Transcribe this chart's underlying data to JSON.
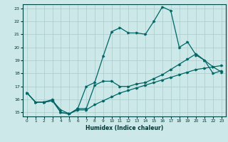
{
  "xlabel": "Humidex (Indice chaleur)",
  "bg_color": "#cce8e8",
  "grid_color": "#aacccc",
  "line_color": "#006666",
  "xlim": [
    -0.5,
    23.5
  ],
  "ylim": [
    14.7,
    23.3
  ],
  "xticks": [
    0,
    1,
    2,
    3,
    4,
    5,
    6,
    7,
    8,
    9,
    10,
    11,
    12,
    13,
    14,
    15,
    16,
    17,
    18,
    19,
    20,
    21,
    22,
    23
  ],
  "yticks": [
    15,
    16,
    17,
    18,
    19,
    20,
    21,
    22,
    23
  ],
  "line1_x": [
    0,
    1,
    2,
    3,
    4,
    5,
    6,
    7,
    8,
    9,
    10,
    11,
    12,
    13,
    14,
    15,
    16,
    17,
    18,
    19,
    20,
    21,
    22,
    23
  ],
  "line1_y": [
    16.5,
    15.8,
    15.8,
    15.9,
    15.0,
    14.9,
    15.3,
    17.0,
    17.3,
    19.3,
    21.2,
    21.5,
    21.1,
    21.1,
    21.0,
    22.0,
    23.1,
    22.8,
    20.0,
    20.4,
    19.4,
    19.0,
    18.5,
    18.1
  ],
  "line2_x": [
    0,
    1,
    2,
    3,
    4,
    5,
    6,
    7,
    8,
    9,
    10,
    11,
    12,
    13,
    14,
    15,
    16,
    17,
    18,
    19,
    20,
    21,
    22,
    23
  ],
  "line2_y": [
    16.5,
    15.8,
    15.8,
    16.0,
    15.0,
    14.9,
    15.3,
    15.3,
    17.1,
    17.4,
    17.4,
    17.0,
    17.0,
    17.2,
    17.3,
    17.6,
    17.9,
    18.3,
    18.7,
    19.1,
    19.5,
    19.0,
    18.0,
    18.2
  ],
  "line3_x": [
    0,
    1,
    2,
    3,
    4,
    5,
    6,
    7,
    8,
    9,
    10,
    11,
    12,
    13,
    14,
    15,
    16,
    17,
    18,
    19,
    20,
    21,
    22,
    23
  ],
  "line3_y": [
    16.5,
    15.8,
    15.8,
    15.9,
    15.2,
    14.9,
    15.2,
    15.2,
    15.6,
    15.9,
    16.2,
    16.5,
    16.7,
    16.9,
    17.1,
    17.3,
    17.5,
    17.7,
    17.9,
    18.1,
    18.3,
    18.4,
    18.5,
    18.6
  ]
}
